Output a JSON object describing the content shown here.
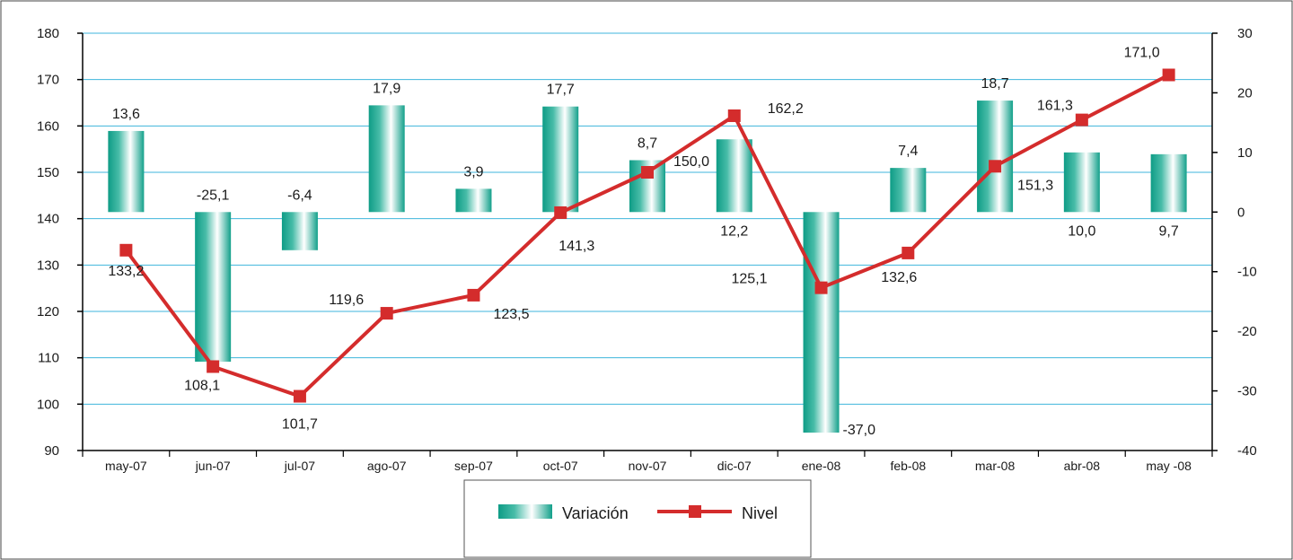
{
  "chart_data": {
    "type": "bar+line",
    "categories": [
      "may-07",
      "jun-07",
      "jul-07",
      "ago-07",
      "sep-07",
      "oct-07",
      "nov-07",
      "dic-07",
      "ene-08",
      "feb-08",
      "mar-08",
      "abr-08",
      "may -08"
    ],
    "series": [
      {
        "name": "Variación",
        "type": "bar",
        "axis": "right",
        "values": [
          13.6,
          -25.1,
          -6.4,
          17.9,
          3.9,
          17.7,
          8.7,
          12.2,
          -37.0,
          7.4,
          18.7,
          10.0,
          9.7
        ],
        "labels": [
          "13,6",
          "-25,1",
          "-6,4",
          "17,9",
          "3,9",
          "17,7",
          "8,7",
          "12,2",
          "-37,0",
          "7,4",
          "18,7",
          "10,0",
          "9,7"
        ],
        "color": "#12a08a"
      },
      {
        "name": "Nivel",
        "type": "line",
        "axis": "left",
        "values": [
          133.2,
          108.1,
          101.7,
          119.6,
          123.5,
          141.3,
          150.0,
          162.2,
          125.1,
          132.6,
          151.3,
          161.3,
          171.0
        ],
        "labels": [
          "133,2",
          "108,1",
          "101,7",
          "119,6",
          "123,5",
          "141,3",
          "150,0",
          "162,2",
          "125,1",
          "132,6",
          "151,3",
          "161,3",
          "171,0"
        ],
        "color": "#d42c2c"
      }
    ],
    "y_left": {
      "min": 90,
      "max": 180,
      "step": 10,
      "ticks": [
        "90",
        "100",
        "110",
        "120",
        "130",
        "140",
        "150",
        "160",
        "170",
        "180"
      ]
    },
    "y_right": {
      "min": -40,
      "max": 30,
      "step": 10,
      "ticks": [
        "-40",
        "-30",
        "-20",
        "-10",
        "0",
        "10",
        "20",
        "30"
      ]
    },
    "grid": true,
    "legend": {
      "position": "bottom",
      "items": [
        "Variación",
        "Nivel"
      ]
    }
  }
}
